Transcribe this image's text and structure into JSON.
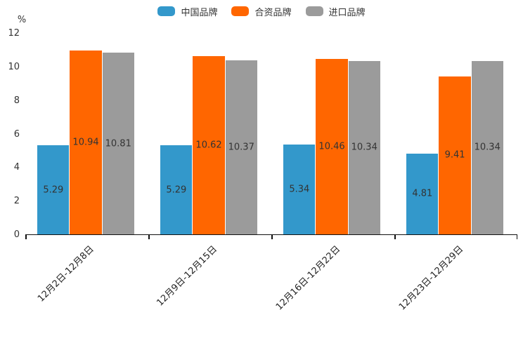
{
  "chart_data": {
    "type": "bar",
    "categories": [
      "12月2日-12月8日",
      "12月9日-12月15日",
      "12月16日-12月22日",
      "12月23日-12月29日"
    ],
    "series": [
      {
        "name": "中国品牌",
        "color": "#3398CB",
        "values": [
          5.29,
          5.29,
          5.34,
          4.81
        ]
      },
      {
        "name": "合资品牌",
        "color": "#FF6600",
        "values": [
          10.94,
          10.62,
          10.46,
          9.41
        ]
      },
      {
        "name": "进口品牌",
        "color": "#9B9B9B",
        "values": [
          10.81,
          10.37,
          10.34,
          10.34
        ]
      }
    ],
    "ylabel": "%",
    "ylim": [
      0,
      12
    ],
    "yticks": [
      0,
      2,
      4,
      6,
      8,
      10,
      12
    ],
    "grid": false,
    "legend_position": "top",
    "bar_value_labels": true,
    "colors": {
      "text": "#333333",
      "axis": "#111111",
      "background": "#ffffff"
    }
  }
}
